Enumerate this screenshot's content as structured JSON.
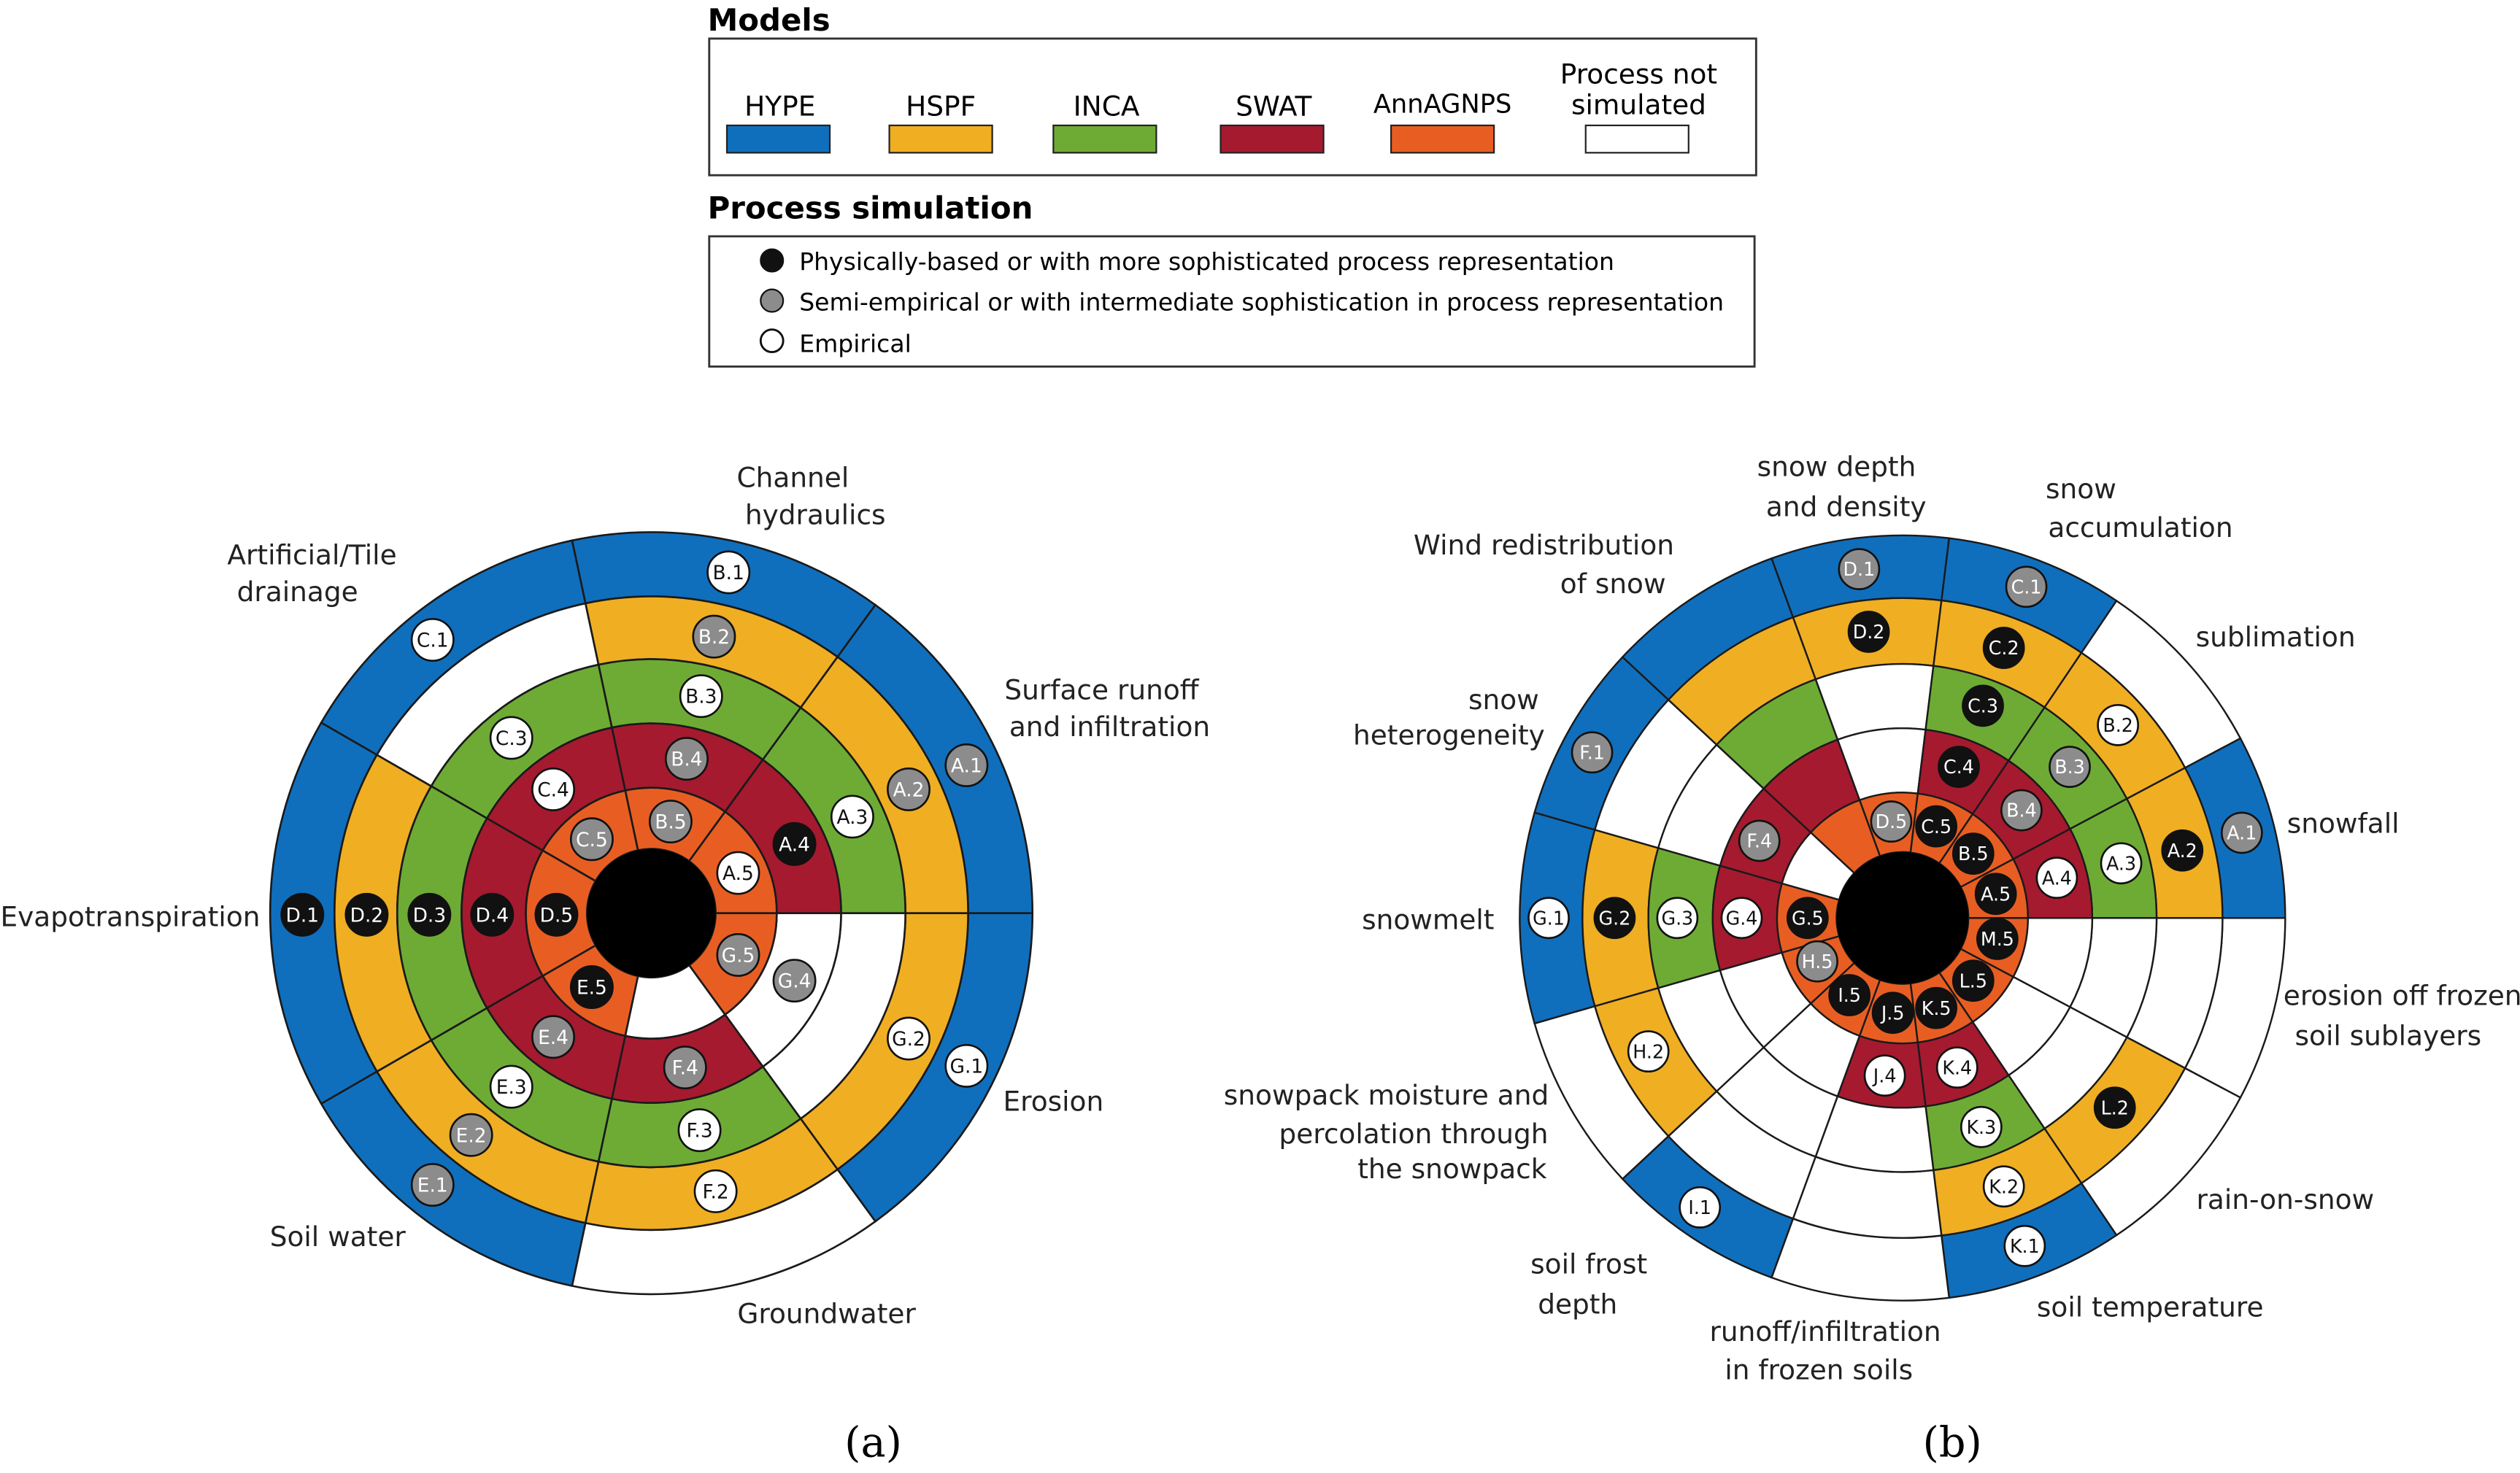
{
  "legend": {
    "models_title": "Models",
    "models": [
      {
        "key": "hype",
        "label": "HYPE",
        "color": "#0f6fbd"
      },
      {
        "key": "hspf",
        "label": "HSPF",
        "color": "#f0ae22"
      },
      {
        "key": "inca",
        "label": "INCA",
        "color": "#6eab34"
      },
      {
        "key": "swat",
        "label": "SWAT",
        "color": "#a51a2f"
      },
      {
        "key": "annagnps",
        "label": "AnnAGNPS",
        "color": "#e85e22"
      },
      {
        "key": "none",
        "label_line1": "Process not",
        "label_line2": "simulated",
        "color": "#ffffff"
      }
    ],
    "process_title": "Process simulation",
    "process": [
      {
        "kind": "physical",
        "label": "Physically-based or with more sophisticated process representation",
        "color": "#111111"
      },
      {
        "kind": "semi",
        "label": "Semi-empirical or with intermediate sophistication in process representation",
        "color": "#8c8c8c"
      },
      {
        "kind": "empirical",
        "label": "Empirical",
        "color": "#ffffff"
      }
    ]
  },
  "panel_a": {
    "caption": "(a)",
    "process_labels": [
      {
        "lines": [
          "Channel",
          "hydraulics"
        ]
      },
      {
        "lines": [
          "Surface runoff",
          "and infiltration"
        ]
      },
      {
        "lines": [
          "Erosion"
        ]
      },
      {
        "lines": [
          "Groundwater"
        ]
      },
      {
        "lines": [
          "Soil water"
        ]
      },
      {
        "lines": [
          "Evapotranspiration"
        ]
      },
      {
        "lines": [
          "Artificial/Tile",
          "drainage"
        ]
      }
    ],
    "markers": [
      {
        "id": "B.1",
        "type": "empirical"
      },
      {
        "id": "B.2",
        "type": "semi"
      },
      {
        "id": "B.3",
        "type": "empirical"
      },
      {
        "id": "B.4",
        "type": "semi"
      },
      {
        "id": "B.5",
        "type": "semi"
      },
      {
        "id": "A.1",
        "type": "semi"
      },
      {
        "id": "A.2",
        "type": "semi"
      },
      {
        "id": "A.3",
        "type": "empirical"
      },
      {
        "id": "A.4",
        "type": "physical"
      },
      {
        "id": "A.5",
        "type": "empirical"
      },
      {
        "id": "G.1",
        "type": "empirical"
      },
      {
        "id": "G.2",
        "type": "empirical"
      },
      {
        "id": "G.4",
        "type": "semi"
      },
      {
        "id": "G.5",
        "type": "semi"
      },
      {
        "id": "F.2",
        "type": "empirical"
      },
      {
        "id": "F.3",
        "type": "empirical"
      },
      {
        "id": "F.4",
        "type": "semi"
      },
      {
        "id": "E.1",
        "type": "semi"
      },
      {
        "id": "E.2",
        "type": "semi"
      },
      {
        "id": "E.3",
        "type": "empirical"
      },
      {
        "id": "E.4",
        "type": "semi"
      },
      {
        "id": "E.5",
        "type": "physical"
      },
      {
        "id": "D.1",
        "type": "physical"
      },
      {
        "id": "D.2",
        "type": "physical"
      },
      {
        "id": "D.3",
        "type": "physical"
      },
      {
        "id": "D.4",
        "type": "physical"
      },
      {
        "id": "D.5",
        "type": "physical"
      },
      {
        "id": "C.1",
        "type": "empirical"
      },
      {
        "id": "C.3",
        "type": "empirical"
      },
      {
        "id": "C.4",
        "type": "empirical"
      },
      {
        "id": "C.5",
        "type": "semi"
      }
    ]
  },
  "panel_b": {
    "caption": "(b)",
    "process_labels": [
      {
        "lines": [
          "snow depth",
          "and density"
        ]
      },
      {
        "lines": [
          "snow",
          "accumulation"
        ]
      },
      {
        "lines": [
          "sublimation"
        ]
      },
      {
        "lines": [
          "snowfall"
        ]
      },
      {
        "lines": [
          "erosion off frozen",
          "soil sublayers"
        ]
      },
      {
        "lines": [
          "rain-on-snow"
        ]
      },
      {
        "lines": [
          "soil temperature"
        ]
      },
      {
        "lines": [
          "runoff/infiltration",
          "in frozen soils"
        ]
      },
      {
        "lines": [
          "soil frost",
          "depth"
        ]
      },
      {
        "lines": [
          "snowpack moisture and",
          "percolation through",
          "the snowpack"
        ]
      },
      {
        "lines": [
          "snowmelt"
        ]
      },
      {
        "lines": [
          "snow",
          "heterogeneity"
        ]
      },
      {
        "lines": [
          "Wind redistribution",
          "of snow"
        ]
      }
    ],
    "markers": [
      {
        "id": "D.1",
        "type": "semi"
      },
      {
        "id": "D.2",
        "type": "physical"
      },
      {
        "id": "D.5",
        "type": "semi"
      },
      {
        "id": "C.1",
        "type": "semi"
      },
      {
        "id": "C.2",
        "type": "physical"
      },
      {
        "id": "C.3",
        "type": "physical"
      },
      {
        "id": "C.4",
        "type": "physical"
      },
      {
        "id": "C.5",
        "type": "physical"
      },
      {
        "id": "B.2",
        "type": "empirical"
      },
      {
        "id": "B.3",
        "type": "semi"
      },
      {
        "id": "B.4",
        "type": "semi"
      },
      {
        "id": "B.5",
        "type": "physical"
      },
      {
        "id": "A.1",
        "type": "semi"
      },
      {
        "id": "A.2",
        "type": "physical"
      },
      {
        "id": "A.3",
        "type": "empirical"
      },
      {
        "id": "A.4",
        "type": "empirical"
      },
      {
        "id": "A.5",
        "type": "physical"
      },
      {
        "id": "M.5",
        "type": "physical"
      },
      {
        "id": "L.2",
        "type": "physical"
      },
      {
        "id": "L.5",
        "type": "physical"
      },
      {
        "id": "K.1",
        "type": "empirical"
      },
      {
        "id": "K.2",
        "type": "empirical"
      },
      {
        "id": "K.3",
        "type": "empirical"
      },
      {
        "id": "K.4",
        "type": "empirical"
      },
      {
        "id": "K.5",
        "type": "physical"
      },
      {
        "id": "J.4",
        "type": "empirical"
      },
      {
        "id": "J.5",
        "type": "physical"
      },
      {
        "id": "I.1",
        "type": "empirical"
      },
      {
        "id": "I.5",
        "type": "physical"
      },
      {
        "id": "H.2",
        "type": "empirical"
      },
      {
        "id": "H.5",
        "type": "semi"
      },
      {
        "id": "G.1",
        "type": "empirical"
      },
      {
        "id": "G.2",
        "type": "physical"
      },
      {
        "id": "G.3",
        "type": "empirical"
      },
      {
        "id": "G.4",
        "type": "empirical"
      },
      {
        "id": "G.5",
        "type": "physical"
      },
      {
        "id": "F.1",
        "type": "semi"
      },
      {
        "id": "F.4",
        "type": "semi"
      }
    ]
  }
}
